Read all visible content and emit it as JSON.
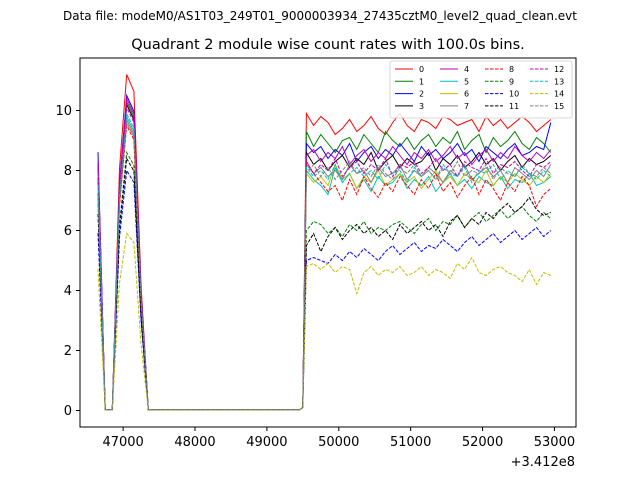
{
  "figure": {
    "suptitle": "Data file: modeM0/AS1T03_249T01_9000003934_27435cztM0_level2_quad_clean.evt",
    "title": "Quadrant 2 module wise count rates with 100.0s bins.",
    "x_offset_label": "+3.412e8"
  },
  "chart_data": {
    "type": "line",
    "title": "Quadrant 2 module wise count rates with 100.0s bins.",
    "xlabel": "",
    "ylabel": "",
    "x_offset": 341200000,
    "xlim": [
      46400,
      53300
    ],
    "ylim": [
      -0.55,
      11.75
    ],
    "xticks": [
      47000,
      48000,
      49000,
      50000,
      51000,
      52000,
      53000
    ],
    "yticks": [
      0,
      2,
      4,
      6,
      8,
      10
    ],
    "grid": false,
    "legend_position": "top-right",
    "legend_columns": 4,
    "bin_size_s": 100.0,
    "series": [
      {
        "name": "0",
        "color": "#ff0000",
        "dash": false,
        "peak": 11.2,
        "high": [
          9.9,
          9.5,
          9.8,
          9.6,
          9.2,
          9.4,
          9.7,
          9.3,
          9.5,
          9.8,
          9.4,
          9.2,
          9.6,
          9.9,
          9.5,
          9.3,
          9.7,
          9.6,
          9.4,
          9.8,
          9.7,
          9.5,
          9.6,
          9.7,
          9.3,
          9.8,
          9.5,
          9.7,
          9.4,
          9.6,
          9.8,
          9.6,
          9.3,
          9.5,
          9.7,
          9.0
        ]
      },
      {
        "name": "1",
        "color": "#008000",
        "dash": false,
        "peak": 10.3,
        "high": [
          9.3,
          8.8,
          9.2,
          8.9,
          8.6,
          9.0,
          9.1,
          8.7,
          9.2,
          8.9,
          8.6,
          9.3,
          9.0,
          8.8,
          9.1,
          8.7,
          9.0,
          9.2,
          8.8,
          9.1,
          8.9,
          9.3,
          8.7,
          9.0,
          9.2,
          8.6,
          9.1,
          8.8,
          9.0,
          9.3,
          8.9,
          8.7,
          9.1,
          8.9,
          8.6,
          8.0
        ]
      },
      {
        "name": "2",
        "color": "#0000ff",
        "dash": false,
        "peak": 10.5,
        "high": [
          8.9,
          8.6,
          8.8,
          8.4,
          8.7,
          8.5,
          8.9,
          8.3,
          8.6,
          8.8,
          8.4,
          8.7,
          8.5,
          8.9,
          8.6,
          8.3,
          8.8,
          8.5,
          8.7,
          8.4,
          8.6,
          8.9,
          8.5,
          8.7,
          8.3,
          8.8,
          8.6,
          8.4,
          8.7,
          8.9,
          8.5,
          8.6,
          8.8,
          8.7,
          9.6,
          8.0
        ]
      },
      {
        "name": "3",
        "color": "#000000",
        "dash": false,
        "peak": 10.2,
        "high": [
          8.6,
          8.2,
          8.4,
          8.0,
          8.3,
          8.5,
          8.1,
          8.4,
          8.2,
          8.6,
          8.0,
          8.3,
          8.5,
          8.1,
          8.4,
          8.2,
          8.3,
          8.6,
          8.0,
          8.4,
          8.2,
          8.5,
          8.1,
          8.3,
          8.6,
          8.2,
          8.4,
          8.0,
          8.3,
          8.5,
          8.1,
          8.4,
          8.2,
          8.3,
          8.5,
          7.8
        ]
      },
      {
        "name": "4",
        "color": "#bf00bf",
        "dash": false,
        "peak": 10.4,
        "high": [
          8.5,
          8.7,
          8.3,
          8.6,
          8.4,
          8.8,
          8.2,
          8.5,
          8.7,
          8.3,
          8.6,
          8.4,
          8.8,
          8.5,
          8.2,
          8.6,
          8.4,
          8.7,
          8.3,
          8.5,
          8.8,
          8.4,
          8.6,
          8.2,
          8.5,
          8.7,
          8.3,
          8.6,
          8.4,
          8.8,
          8.5,
          8.3,
          8.6,
          8.4,
          8.7,
          8.2
        ]
      },
      {
        "name": "5",
        "color": "#00bfbf",
        "dash": false,
        "peak": 9.8,
        "high": [
          8.0,
          7.7,
          7.5,
          7.2,
          8.1,
          7.6,
          7.9,
          7.4,
          7.7,
          7.3,
          7.8,
          7.5,
          7.6,
          7.9,
          7.4,
          7.7,
          7.5,
          7.8,
          7.3,
          7.6,
          7.9,
          7.5,
          7.7,
          7.4,
          7.8,
          7.6,
          7.5,
          7.8,
          7.4,
          7.7,
          7.6,
          7.9,
          7.5,
          7.6,
          7.8,
          7.4
        ]
      },
      {
        "name": "6",
        "color": "#bfbf00",
        "dash": false,
        "peak": 9.6,
        "high": [
          7.9,
          7.6,
          7.8,
          7.5,
          8.2,
          7.7,
          7.9,
          7.4,
          7.8,
          7.6,
          8.0,
          7.5,
          7.7,
          7.9,
          7.6,
          7.8,
          7.4,
          7.7,
          8.0,
          7.6,
          7.8,
          7.5,
          7.9,
          7.7,
          7.6,
          8.0,
          7.5,
          7.8,
          7.6,
          7.9,
          7.7,
          7.5,
          7.8,
          7.6,
          7.9,
          7.3
        ]
      },
      {
        "name": "7",
        "color": "#808080",
        "dash": false,
        "peak": 9.7,
        "high": [
          8.2,
          7.9,
          8.1,
          7.8,
          8.0,
          7.7,
          8.2,
          7.9,
          8.0,
          7.6,
          8.1,
          7.8,
          7.9,
          8.2,
          7.7,
          8.0,
          7.8,
          8.1,
          7.9,
          7.6,
          8.0,
          7.8,
          8.2,
          7.7,
          7.9,
          8.1,
          7.8,
          8.0,
          7.6,
          8.1,
          7.9,
          7.7,
          8.0,
          7.8,
          8.2,
          7.5
        ]
      },
      {
        "name": "8",
        "color": "#ff0000",
        "dash": true,
        "peak": 9.5,
        "high": [
          8.3,
          7.9,
          7.6,
          7.3,
          7.5,
          7.0,
          7.7,
          7.2,
          7.8,
          7.4,
          7.1,
          7.6,
          7.3,
          7.8,
          7.5,
          7.2,
          7.7,
          7.4,
          7.9,
          7.3,
          7.6,
          7.1,
          7.5,
          7.8,
          7.2,
          7.7,
          7.4,
          7.0,
          7.6,
          7.3,
          7.8,
          7.5,
          6.8,
          7.2,
          7.4,
          7.0
        ]
      },
      {
        "name": "9",
        "color": "#008000",
        "dash": true,
        "peak": 8.6,
        "high": [
          6.0,
          6.3,
          6.2,
          5.9,
          6.1,
          5.8,
          6.2,
          6.0,
          6.3,
          5.9,
          6.1,
          6.0,
          6.2,
          6.3,
          6.1,
          5.9,
          6.2,
          6.4,
          6.0,
          6.3,
          6.2,
          6.5,
          6.1,
          6.4,
          6.6,
          6.3,
          6.5,
          6.7,
          6.4,
          6.6,
          6.8,
          6.5,
          6.3,
          6.6,
          6.4,
          6.3
        ]
      },
      {
        "name": "10",
        "color": "#0000ff",
        "dash": true,
        "peak": 8.0,
        "high": [
          5.0,
          5.1,
          5.0,
          4.9,
          5.2,
          5.0,
          5.3,
          5.1,
          5.4,
          5.2,
          5.0,
          5.3,
          5.5,
          5.2,
          5.4,
          5.6,
          5.3,
          5.5,
          5.4,
          5.7,
          5.5,
          5.3,
          5.6,
          5.8,
          5.5,
          5.7,
          5.9,
          5.6,
          5.8,
          6.0,
          5.7,
          5.9,
          6.1,
          5.8,
          6.0,
          6.3
        ]
      },
      {
        "name": "11",
        "color": "#000000",
        "dash": true,
        "peak": 8.4,
        "high": [
          5.5,
          5.9,
          5.3,
          5.8,
          6.1,
          5.7,
          6.0,
          6.2,
          5.9,
          6.1,
          5.8,
          6.0,
          5.7,
          6.2,
          5.9,
          6.1,
          6.3,
          6.0,
          6.2,
          5.8,
          6.3,
          6.5,
          6.1,
          6.4,
          6.2,
          6.6,
          6.4,
          6.7,
          6.9,
          6.6,
          6.8,
          7.1,
          6.7,
          6.5,
          6.6,
          6.4
        ]
      },
      {
        "name": "12",
        "color": "#bf00bf",
        "dash": true,
        "peak": 10.1,
        "high": [
          8.3,
          7.9,
          8.2,
          8.0,
          8.4,
          7.8,
          8.1,
          8.3,
          7.9,
          8.2,
          8.0,
          8.4,
          7.8,
          8.2,
          8.1,
          8.3,
          7.9,
          8.1,
          8.4,
          8.0,
          8.2,
          7.8,
          8.3,
          8.1,
          8.0,
          8.4,
          7.9,
          8.2,
          8.1,
          8.3,
          8.0,
          7.8,
          8.2,
          8.1,
          8.3,
          7.9
        ]
      },
      {
        "name": "13",
        "color": "#00bfbf",
        "dash": true,
        "peak": 9.9,
        "high": [
          8.1,
          7.8,
          8.0,
          7.7,
          8.2,
          7.6,
          7.9,
          8.1,
          7.8,
          8.0,
          7.7,
          8.2,
          7.9,
          8.0,
          7.6,
          8.1,
          7.8,
          8.0,
          7.7,
          8.2,
          7.9,
          7.8,
          8.1,
          7.6,
          8.0,
          7.9,
          8.2,
          7.7,
          8.0,
          7.8,
          8.1,
          7.9,
          7.7,
          8.0,
          7.8,
          8.1
        ]
      },
      {
        "name": "14",
        "color": "#bfbf00",
        "dash": true,
        "peak": 5.9,
        "high": [
          4.8,
          4.9,
          4.7,
          4.9,
          4.6,
          4.8,
          4.7,
          3.9,
          4.6,
          4.8,
          4.5,
          4.7,
          4.6,
          4.8,
          4.5,
          4.6,
          4.8,
          4.5,
          4.7,
          4.6,
          4.4,
          4.9,
          4.7,
          5.1,
          4.6,
          4.5,
          4.7,
          4.8,
          4.6,
          4.5,
          4.3,
          4.7,
          4.2,
          4.6,
          4.5,
          4.2
        ]
      },
      {
        "name": "15",
        "color": "#808080",
        "dash": true,
        "peak": 9.6,
        "high": [
          7.9,
          8.2,
          7.8,
          8.1,
          7.7,
          8.0,
          8.3,
          7.9,
          8.1,
          7.8,
          8.2,
          7.9,
          7.7,
          8.1,
          7.9,
          8.2,
          7.8,
          8.0,
          7.7,
          8.1,
          7.9,
          8.3,
          7.8,
          8.0,
          7.9,
          8.2,
          7.7,
          8.1,
          7.9,
          7.8,
          8.2,
          7.9,
          7.8,
          8.1,
          7.9,
          7.6
        ]
      }
    ]
  }
}
